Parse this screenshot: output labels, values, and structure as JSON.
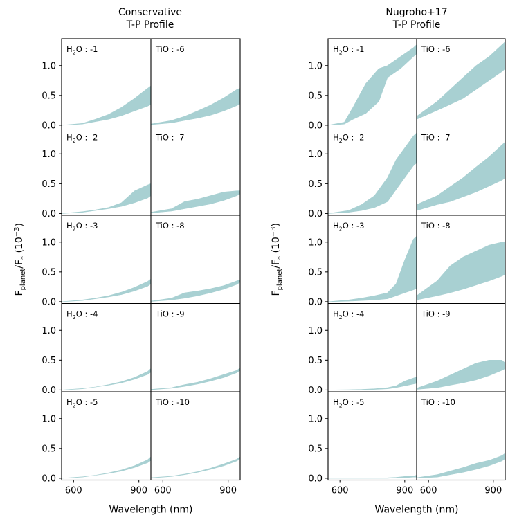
{
  "chart_data": [
    {
      "type": "area",
      "title": "Conservative T-P Profile",
      "title_lines": [
        "Conservative",
        "T-P Profile"
      ],
      "xlabel": "Wavelength (nm)",
      "ylabel": "F_planet/F_* (10^-3)",
      "xlim": [
        545,
        955
      ],
      "ylim": [
        -0.03,
        1.45
      ],
      "xticks": [
        600,
        900
      ],
      "yticks": [
        0.0,
        0.5,
        1.0
      ],
      "series_color": "#a8d0d2",
      "panels": [
        {
          "label_mol": "H",
          "label_sub": "2",
          "label_rest": "O : -1",
          "column": 0,
          "row": 0,
          "x": [
            545,
            640,
            700,
            760,
            820,
            880,
            940,
            955
          ],
          "lower": [
            0,
            0.02,
            0.06,
            0.1,
            0.16,
            0.24,
            0.32,
            0.35
          ],
          "upper": [
            0,
            0.03,
            0.1,
            0.18,
            0.3,
            0.45,
            0.62,
            0.66
          ]
        },
        {
          "label_mol": "H",
          "label_sub": "2",
          "label_rest": "O : -2",
          "column": 0,
          "row": 1,
          "x": [
            545,
            640,
            700,
            760,
            820,
            880,
            940,
            955
          ],
          "lower": [
            0,
            0.02,
            0.05,
            0.08,
            0.12,
            0.18,
            0.26,
            0.3
          ],
          "upper": [
            0,
            0.03,
            0.06,
            0.1,
            0.18,
            0.38,
            0.48,
            0.5
          ]
        },
        {
          "label_mol": "H",
          "label_sub": "2",
          "label_rest": "O : -3",
          "column": 0,
          "row": 2,
          "x": [
            545,
            640,
            700,
            760,
            820,
            880,
            940,
            955
          ],
          "lower": [
            0,
            0.02,
            0.05,
            0.08,
            0.12,
            0.18,
            0.26,
            0.3
          ],
          "upper": [
            0,
            0.03,
            0.06,
            0.1,
            0.16,
            0.24,
            0.34,
            0.38
          ]
        },
        {
          "label_mol": "H",
          "label_sub": "2",
          "label_rest": "O : -4",
          "column": 0,
          "row": 3,
          "x": [
            545,
            640,
            700,
            760,
            820,
            880,
            940,
            955
          ],
          "lower": [
            0,
            0.02,
            0.05,
            0.08,
            0.12,
            0.18,
            0.26,
            0.3
          ],
          "upper": [
            0,
            0.025,
            0.05,
            0.09,
            0.14,
            0.21,
            0.31,
            0.36
          ]
        },
        {
          "label_mol": "H",
          "label_sub": "2",
          "label_rest": "O : -5",
          "column": 0,
          "row": 4,
          "x": [
            545,
            640,
            700,
            760,
            820,
            880,
            940,
            955
          ],
          "lower": [
            0,
            0.02,
            0.05,
            0.08,
            0.12,
            0.18,
            0.26,
            0.3
          ],
          "upper": [
            0,
            0.025,
            0.05,
            0.09,
            0.14,
            0.21,
            0.31,
            0.36
          ]
        },
        {
          "label_mol": "TiO",
          "label_sub": "",
          "label_rest": " : -6",
          "column": 1,
          "row": 0,
          "x": [
            545,
            640,
            700,
            760,
            820,
            880,
            940,
            955
          ],
          "lower": [
            0.01,
            0.04,
            0.08,
            0.12,
            0.17,
            0.24,
            0.33,
            0.36
          ],
          "upper": [
            0.02,
            0.08,
            0.15,
            0.24,
            0.34,
            0.46,
            0.6,
            0.62
          ]
        },
        {
          "label_mol": "TiO",
          "label_sub": "",
          "label_rest": " : -7",
          "column": 1,
          "row": 1,
          "x": [
            545,
            640,
            700,
            760,
            820,
            880,
            940,
            955
          ],
          "lower": [
            0.01,
            0.04,
            0.08,
            0.12,
            0.16,
            0.22,
            0.3,
            0.33
          ],
          "upper": [
            0.02,
            0.08,
            0.2,
            0.24,
            0.3,
            0.36,
            0.38,
            0.38
          ]
        },
        {
          "label_mol": "TiO",
          "label_sub": "",
          "label_rest": " : -8",
          "column": 1,
          "row": 2,
          "x": [
            545,
            640,
            700,
            760,
            820,
            880,
            940,
            955
          ],
          "lower": [
            0.005,
            0.03,
            0.06,
            0.1,
            0.15,
            0.21,
            0.29,
            0.33
          ],
          "upper": [
            0.01,
            0.06,
            0.15,
            0.18,
            0.22,
            0.27,
            0.35,
            0.37
          ]
        },
        {
          "label_mol": "TiO",
          "label_sub": "",
          "label_rest": " : -9",
          "column": 1,
          "row": 3,
          "x": [
            545,
            640,
            700,
            760,
            820,
            880,
            940,
            955
          ],
          "lower": [
            0.005,
            0.03,
            0.06,
            0.1,
            0.15,
            0.21,
            0.29,
            0.33
          ],
          "upper": [
            0.01,
            0.04,
            0.09,
            0.13,
            0.19,
            0.26,
            0.33,
            0.37
          ]
        },
        {
          "label_mol": "TiO",
          "label_sub": "",
          "label_rest": " : -10",
          "column": 1,
          "row": 4,
          "x": [
            545,
            640,
            700,
            760,
            820,
            880,
            940,
            955
          ],
          "lower": [
            0.005,
            0.03,
            0.06,
            0.1,
            0.15,
            0.21,
            0.29,
            0.33
          ],
          "upper": [
            0.01,
            0.035,
            0.07,
            0.11,
            0.17,
            0.24,
            0.32,
            0.36
          ]
        }
      ]
    },
    {
      "type": "area",
      "title": "Nugroho+17 T-P Profile",
      "title_lines": [
        "Nugroho+17",
        "T-P Profile"
      ],
      "xlabel": "Wavelength (nm)",
      "ylabel": "F_planet/F_* (10^-3)",
      "xlim": [
        545,
        955
      ],
      "ylim": [
        -0.03,
        1.45
      ],
      "xticks": [
        600,
        900
      ],
      "yticks": [
        0.0,
        0.5,
        1.0
      ],
      "series_color": "#a8d0d2",
      "panels": [
        {
          "label_mol": "H",
          "label_sub": "2",
          "label_rest": "O : -1",
          "column": 0,
          "row": 0,
          "x": [
            545,
            620,
            660,
            720,
            780,
            820,
            880,
            940,
            955
          ],
          "lower": [
            0,
            0.02,
            0.1,
            0.2,
            0.4,
            0.8,
            0.95,
            1.15,
            1.2
          ],
          "upper": [
            0,
            0.05,
            0.3,
            0.7,
            0.95,
            1.0,
            1.15,
            1.3,
            1.35
          ]
        },
        {
          "label_mol": "H",
          "label_sub": "2",
          "label_rest": "O : -2",
          "column": 0,
          "row": 1,
          "x": [
            545,
            640,
            700,
            760,
            820,
            860,
            900,
            940,
            955
          ],
          "lower": [
            0,
            0.02,
            0.05,
            0.1,
            0.2,
            0.4,
            0.6,
            0.8,
            0.85
          ],
          "upper": [
            0,
            0.05,
            0.15,
            0.3,
            0.6,
            0.9,
            1.1,
            1.3,
            1.35
          ]
        },
        {
          "label_mol": "H",
          "label_sub": "2",
          "label_rest": "O : -3",
          "column": 0,
          "row": 2,
          "x": [
            545,
            640,
            700,
            760,
            820,
            860,
            900,
            940,
            955
          ],
          "lower": [
            0,
            0.01,
            0.02,
            0.03,
            0.05,
            0.1,
            0.15,
            0.2,
            0.22
          ],
          "upper": [
            0,
            0.03,
            0.06,
            0.1,
            0.15,
            0.3,
            0.7,
            1.05,
            1.1
          ]
        },
        {
          "label_mol": "H",
          "label_sub": "2",
          "label_rest": "O : -4",
          "column": 0,
          "row": 3,
          "x": [
            545,
            640,
            700,
            760,
            820,
            860,
            900,
            940,
            955
          ],
          "lower": [
            0,
            0.0,
            0.0,
            0.01,
            0.02,
            0.04,
            0.07,
            0.1,
            0.11
          ],
          "upper": [
            0,
            0.005,
            0.01,
            0.02,
            0.04,
            0.07,
            0.15,
            0.2,
            0.22
          ]
        },
        {
          "label_mol": "H",
          "label_sub": "2",
          "label_rest": "O : -5",
          "column": 0,
          "row": 4,
          "x": [
            545,
            640,
            700,
            760,
            820,
            860,
            900,
            940,
            955
          ],
          "lower": [
            0,
            0.0,
            0.0,
            0.0,
            0.0,
            0.01,
            0.01,
            0.02,
            0.02
          ],
          "upper": [
            0,
            0.002,
            0.004,
            0.006,
            0.008,
            0.015,
            0.03,
            0.04,
            0.05
          ]
        },
        {
          "label_mol": "TiO",
          "label_sub": "",
          "label_rest": " : -6",
          "column": 1,
          "row": 0,
          "x": [
            545,
            640,
            700,
            760,
            820,
            880,
            940,
            955
          ],
          "lower": [
            0.1,
            0.25,
            0.35,
            0.45,
            0.6,
            0.75,
            0.9,
            0.95
          ],
          "upper": [
            0.15,
            0.4,
            0.6,
            0.8,
            1.0,
            1.15,
            1.35,
            1.4
          ]
        },
        {
          "label_mol": "TiO",
          "label_sub": "",
          "label_rest": " : -7",
          "column": 1,
          "row": 1,
          "x": [
            545,
            640,
            700,
            760,
            820,
            880,
            940,
            955
          ],
          "lower": [
            0.05,
            0.15,
            0.2,
            0.28,
            0.36,
            0.46,
            0.56,
            0.6
          ],
          "upper": [
            0.15,
            0.3,
            0.45,
            0.6,
            0.78,
            0.95,
            1.15,
            1.2
          ]
        },
        {
          "label_mol": "TiO",
          "label_sub": "",
          "label_rest": " : -8",
          "column": 1,
          "row": 2,
          "x": [
            545,
            640,
            700,
            760,
            820,
            880,
            940,
            955
          ],
          "lower": [
            0.03,
            0.1,
            0.15,
            0.21,
            0.28,
            0.35,
            0.43,
            0.46
          ],
          "upper": [
            0.1,
            0.35,
            0.6,
            0.75,
            0.85,
            0.95,
            1.0,
            1.0
          ]
        },
        {
          "label_mol": "TiO",
          "label_sub": "",
          "label_rest": " : -9",
          "column": 1,
          "row": 3,
          "x": [
            545,
            640,
            700,
            760,
            820,
            880,
            940,
            955
          ],
          "lower": [
            0.01,
            0.04,
            0.08,
            0.12,
            0.17,
            0.24,
            0.33,
            0.36
          ],
          "upper": [
            0.03,
            0.15,
            0.25,
            0.35,
            0.45,
            0.5,
            0.5,
            0.45
          ]
        },
        {
          "label_mol": "TiO",
          "label_sub": "",
          "label_rest": " : -10",
          "column": 1,
          "row": 4,
          "x": [
            545,
            640,
            700,
            760,
            820,
            880,
            940,
            955
          ],
          "lower": [
            0.005,
            0.02,
            0.06,
            0.1,
            0.15,
            0.21,
            0.29,
            0.33
          ],
          "upper": [
            0.01,
            0.06,
            0.12,
            0.18,
            0.25,
            0.3,
            0.38,
            0.42
          ]
        }
      ]
    }
  ]
}
